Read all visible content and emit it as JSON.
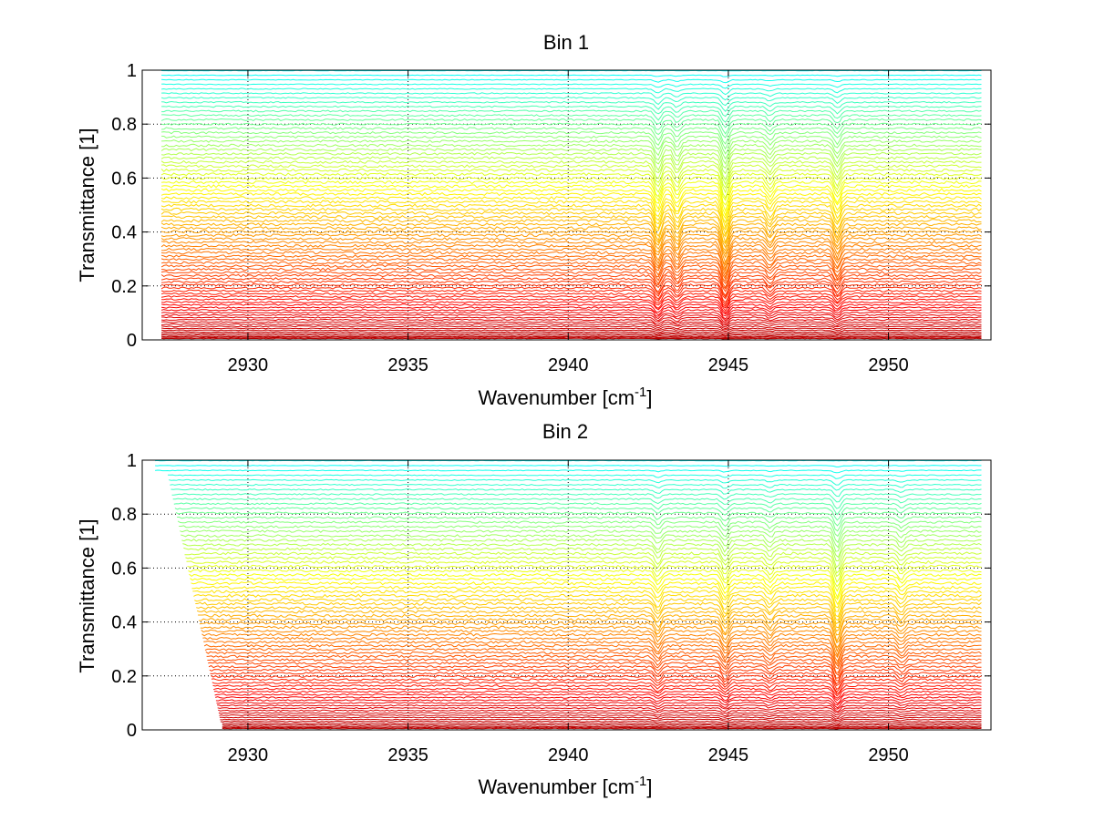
{
  "chart_data": [
    {
      "type": "line",
      "title": "Bin 1",
      "xlabel_main": "Wavenumber [cm",
      "xlabel_sup": "-1",
      "xlabel_end": "]",
      "ylabel": "Transmittance [1]",
      "xlim": [
        2926.7,
        2953.2
      ],
      "ylim": [
        0,
        1
      ],
      "xticks": [
        2930,
        2935,
        2940,
        2945,
        2950
      ],
      "xtick_labels": [
        "2930",
        "2935",
        "2940",
        "2945",
        "2950"
      ],
      "yticks": [
        0,
        0.2,
        0.4,
        0.6,
        0.8,
        1
      ],
      "ytick_labels": [
        "0",
        "0.2",
        "0.4",
        "0.6",
        "0.8",
        "1"
      ],
      "grid": true,
      "colormap": "jet",
      "series_count": 80,
      "x_start": 2927.3,
      "x_end": 2952.9,
      "levels_min": 0.005,
      "levels_max": 0.998,
      "absorption_lines": [
        {
          "x": 2942.8,
          "depth": 0.07
        },
        {
          "x": 2943.4,
          "depth": 0.05
        },
        {
          "x": 2944.9,
          "depth": 0.09
        },
        {
          "x": 2946.3,
          "depth": 0.04
        },
        {
          "x": 2948.4,
          "depth": 0.06
        }
      ]
    },
    {
      "type": "line",
      "title": "Bin 2",
      "xlabel_main": "Wavenumber [cm",
      "xlabel_sup": "-1",
      "xlabel_end": "]",
      "ylabel": "Transmittance [1]",
      "xlim": [
        2926.7,
        2953.2
      ],
      "ylim": [
        0,
        1
      ],
      "xticks": [
        2930,
        2935,
        2940,
        2945,
        2950
      ],
      "xtick_labels": [
        "2930",
        "2935",
        "2940",
        "2945",
        "2950"
      ],
      "yticks": [
        0,
        0.2,
        0.4,
        0.6,
        0.8,
        1
      ],
      "ytick_labels": [
        "0",
        "0.2",
        "0.4",
        "0.6",
        "0.8",
        "1"
      ],
      "grid": true,
      "colormap": "jet",
      "series_count": 75,
      "x_start": 2927.1,
      "x_end": 2952.9,
      "levels_min": 0.005,
      "levels_max": 0.998,
      "absorption_lines": [
        {
          "x": 2942.8,
          "depth": 0.04
        },
        {
          "x": 2944.9,
          "depth": 0.05
        },
        {
          "x": 2946.3,
          "depth": 0.03
        },
        {
          "x": 2948.4,
          "depth": 0.08
        },
        {
          "x": 2950.4,
          "depth": 0.03
        }
      ]
    }
  ]
}
